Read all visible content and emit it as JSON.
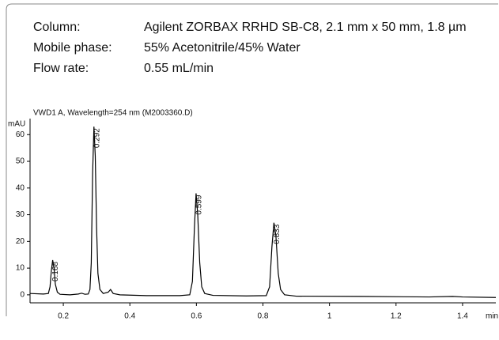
{
  "header": {
    "rows": [
      [
        "Column:",
        "Agilent ZORBAX RRHD SB-C8, 2.1 mm x 50 mm, 1.8 µm"
      ],
      [
        "Mobile phase:",
        "55% Acetonitrile/45% Water"
      ],
      [
        "Flow rate:",
        "0.55 mL/min"
      ]
    ]
  },
  "chart_data": {
    "type": "line",
    "subtitle": "VWD1 A, Wavelength=254 nm (M2003360.D)",
    "y_label": "mAU",
    "x_label": "min",
    "x": [
      0.1,
      0.14,
      0.155,
      0.16,
      0.164,
      0.168,
      0.172,
      0.176,
      0.182,
      0.19,
      0.22,
      0.245,
      0.255,
      0.265,
      0.275,
      0.28,
      0.284,
      0.288,
      0.292,
      0.296,
      0.3,
      0.304,
      0.31,
      0.32,
      0.335,
      0.342,
      0.35,
      0.37,
      0.45,
      0.55,
      0.58,
      0.588,
      0.594,
      0.599,
      0.604,
      0.61,
      0.616,
      0.625,
      0.65,
      0.75,
      0.81,
      0.82,
      0.827,
      0.833,
      0.839,
      0.846,
      0.853,
      0.865,
      0.9,
      1.1,
      1.3,
      1.37,
      1.4,
      1.5
    ],
    "series": [
      {
        "color": "#000000",
        "values": [
          0.5,
          0.3,
          0.5,
          3,
          9,
          13,
          10,
          4,
          1,
          0.2,
          0,
          0.3,
          0.6,
          0.2,
          0.3,
          2,
          12,
          45,
          63,
          52,
          25,
          8,
          2,
          0.5,
          1,
          2,
          0.5,
          0,
          -0.3,
          -0.3,
          0,
          5,
          25,
          38,
          30,
          12,
          3,
          0.5,
          -0.2,
          -0.4,
          -0.3,
          3,
          18,
          27,
          22,
          8,
          2,
          0,
          -0.5,
          -0.6,
          -0.8,
          -0.6,
          -0.8,
          -1
        ]
      }
    ],
    "peak_labels": [
      0.168,
      0.292,
      0.599,
      0.833
    ],
    "xlim": [
      0.1,
      1.5
    ],
    "ylim": [
      -3,
      66
    ],
    "xticks": [
      0.2,
      0.4,
      0.6,
      0.8,
      1,
      1.2,
      1.4
    ],
    "yticks": [
      0,
      10,
      20,
      30,
      40,
      50,
      60
    ]
  }
}
